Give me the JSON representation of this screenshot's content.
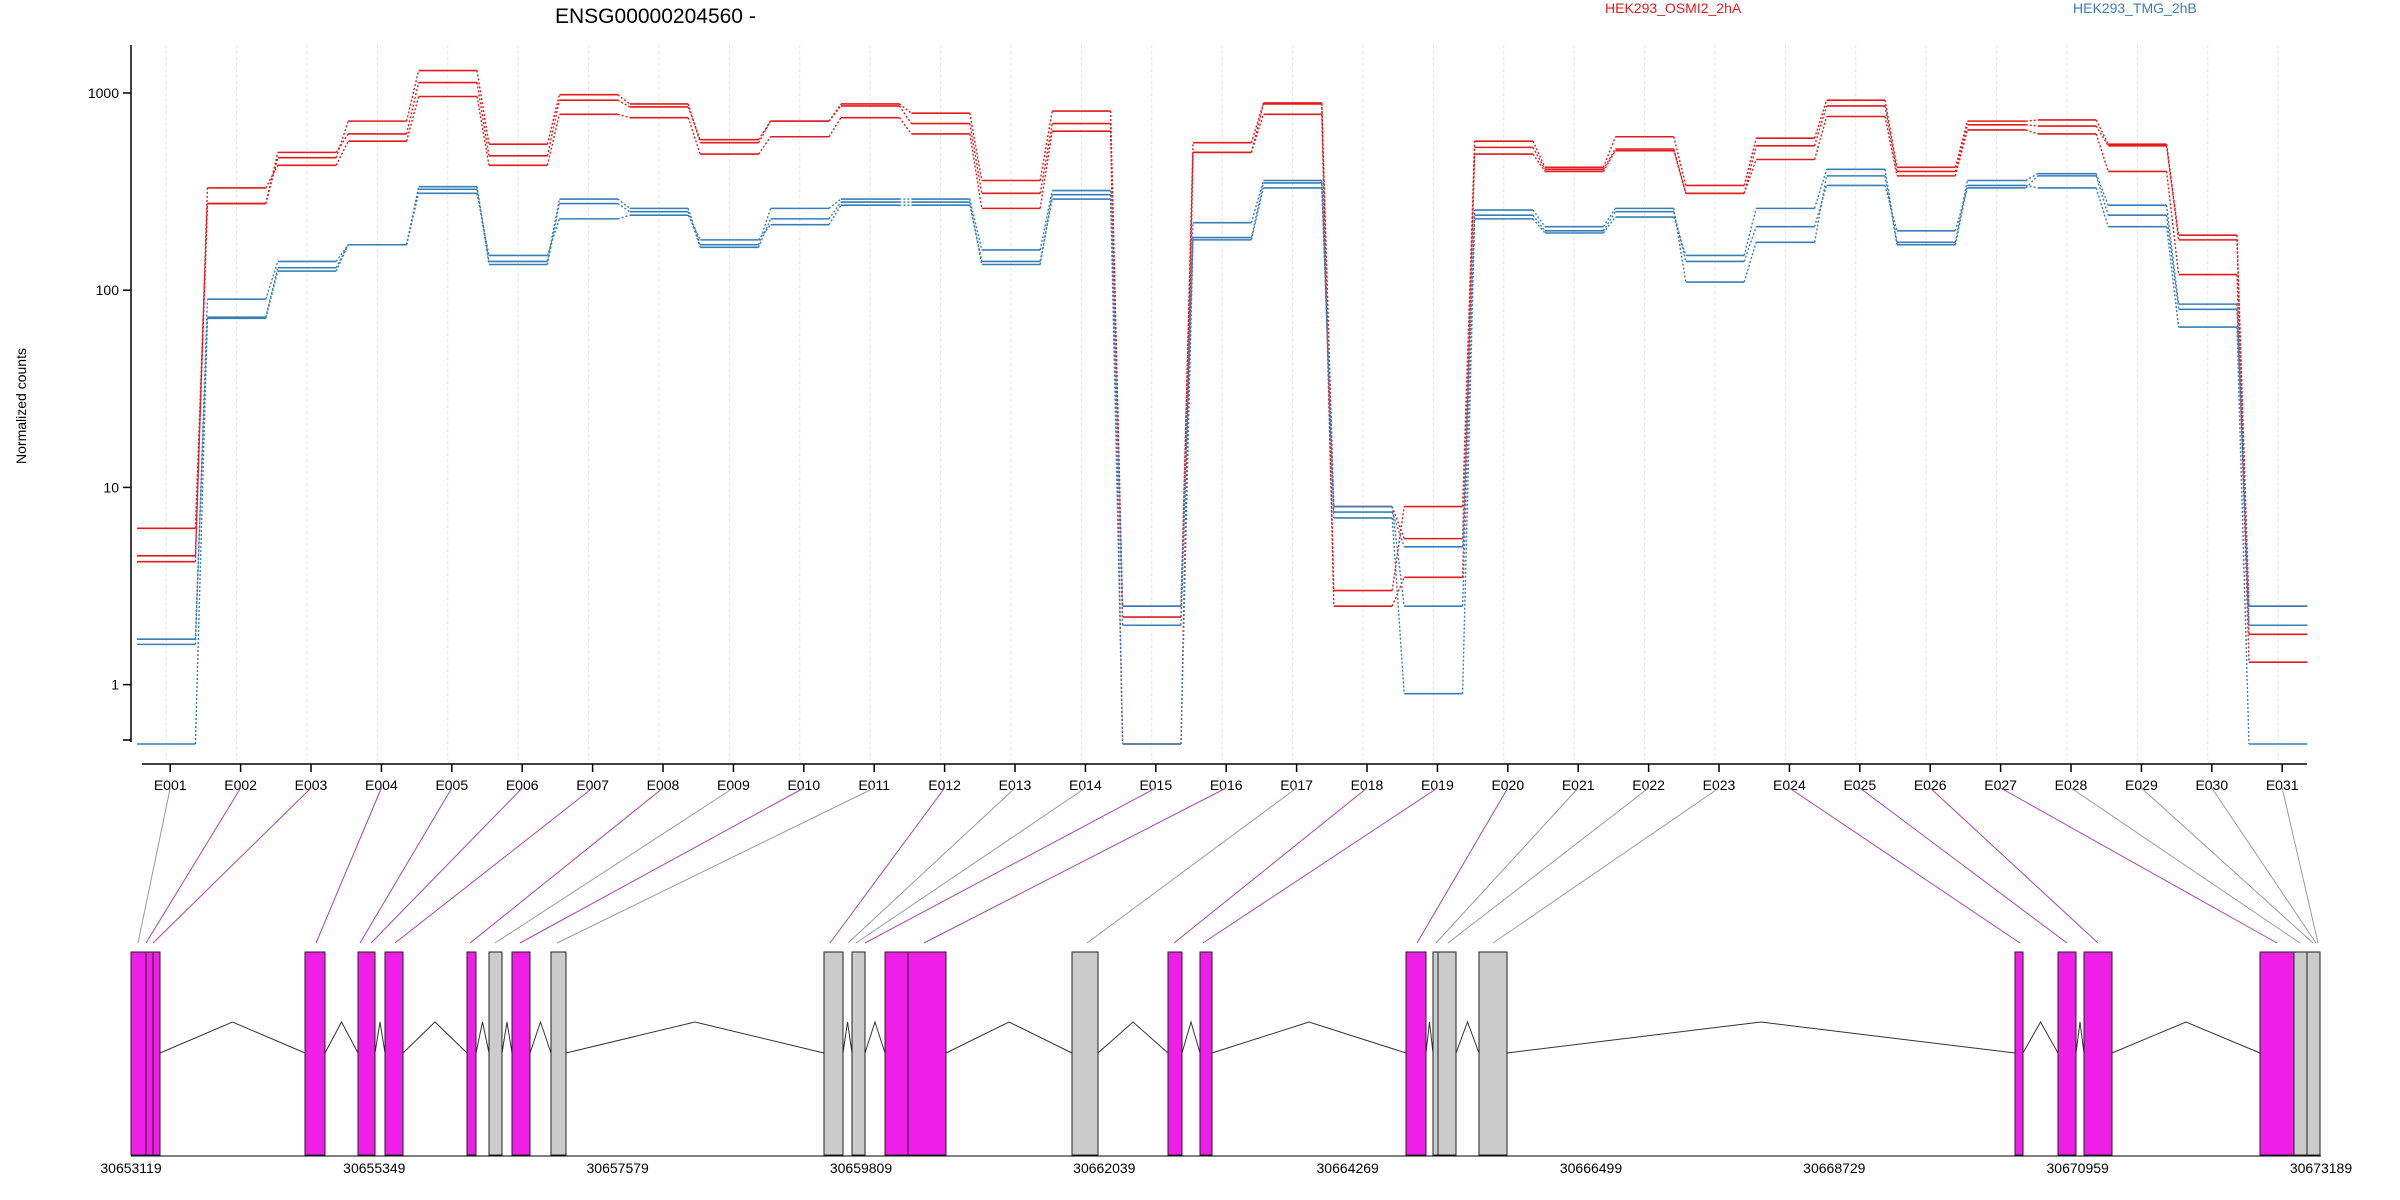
{
  "chart_data": {
    "type": "line",
    "title": "ENSG00000204560 -",
    "ylabel": "Normalized counts",
    "yscale": "log",
    "ylim": [
      0.5,
      1600
    ],
    "yticks": [
      1,
      10,
      100,
      1000
    ],
    "ytick_labels": [
      "1",
      "10",
      "100",
      "1000"
    ],
    "grid": "vertical-dotted",
    "legend": [
      {
        "name": "HEK293_OSMI2_2hA",
        "color": "#e31a1c"
      },
      {
        "name": "HEK293_TMG_2hB",
        "color": "#377eb8"
      }
    ],
    "categories": [
      "E001",
      "E002",
      "E003",
      "E004",
      "E005",
      "E006",
      "E007",
      "E008",
      "E009",
      "E010",
      "E011",
      "E012",
      "E013",
      "E014",
      "E015",
      "E016",
      "E017",
      "E018",
      "E019",
      "E020",
      "E021",
      "E022",
      "E023",
      "E024",
      "E025",
      "E026",
      "E027",
      "E028",
      "E029",
      "E030",
      "E031"
    ],
    "series": [
      {
        "group": "HEK293_OSMI2_2hA",
        "color": "#e31a1c",
        "values": [
          6.2,
          275,
          470,
          720,
          1300,
          550,
          980,
          880,
          560,
          720,
          880,
          790,
          360,
          810,
          2.5,
          560,
          890,
          3.0,
          8,
          570,
          420,
          600,
          340,
          590,
          920,
          420,
          720,
          730,
          550,
          190,
          2.5
        ]
      },
      {
        "group": "HEK293_OSMI2_2hA",
        "color": "#e31a1c",
        "values": [
          4.5,
          275,
          500,
          620,
          1130,
          480,
          920,
          850,
          580,
          720,
          860,
          700,
          310,
          700,
          2.2,
          500,
          880,
          8,
          5.5,
          530,
          410,
          520,
          310,
          540,
          860,
          400,
          690,
          680,
          540,
          180,
          1.8
        ]
      },
      {
        "group": "HEK293_OSMI2_2hA",
        "color": "#e31a1c",
        "values": [
          4.2,
          330,
          430,
          570,
          960,
          430,
          780,
          750,
          490,
          600,
          750,
          620,
          260,
          640,
          0.5,
          500,
          780,
          2.5,
          3.5,
          490,
          400,
          510,
          310,
          460,
          760,
          380,
          650,
          620,
          400,
          120,
          1.3
        ]
      },
      {
        "group": "HEK293_TMG_2hB",
        "color": "#377eb8",
        "values": [
          1.7,
          72,
          125,
          170,
          310,
          150,
          230,
          240,
          180,
          215,
          270,
          270,
          140,
          290,
          2.0,
          180,
          330,
          8,
          2.5,
          240,
          200,
          250,
          140,
          210,
          340,
          200,
          330,
          380,
          240,
          80,
          2.0
        ]
      },
      {
        "group": "HEK293_TMG_2hB",
        "color": "#377eb8",
        "values": [
          1.6,
          90,
          140,
          170,
          335,
          140,
          290,
          260,
          170,
          260,
          290,
          290,
          160,
          320,
          2.5,
          220,
          360,
          7,
          0.9,
          230,
          195,
          235,
          150,
          260,
          410,
          175,
          360,
          390,
          270,
          85,
          2.5
        ]
      },
      {
        "group": "HEK293_TMG_2hB",
        "color": "#377eb8",
        "values": [
          0.5,
          73,
          130,
          170,
          325,
          135,
          275,
          250,
          165,
          230,
          280,
          280,
          135,
          305,
          0.5,
          185,
          350,
          7.5,
          5,
          255,
          210,
          260,
          110,
          175,
          380,
          170,
          340,
          330,
          210,
          65,
          0.5
        ]
      }
    ],
    "gene_model": {
      "coordinate_labels": [
        "30653119",
        "30655349",
        "30657579",
        "30659809",
        "30662039",
        "30664269",
        "30666499",
        "30668729",
        "30670959",
        "30673189"
      ],
      "exon_colors": {
        "significant": "#f01fe8",
        "other": "#cccccc"
      }
    }
  }
}
